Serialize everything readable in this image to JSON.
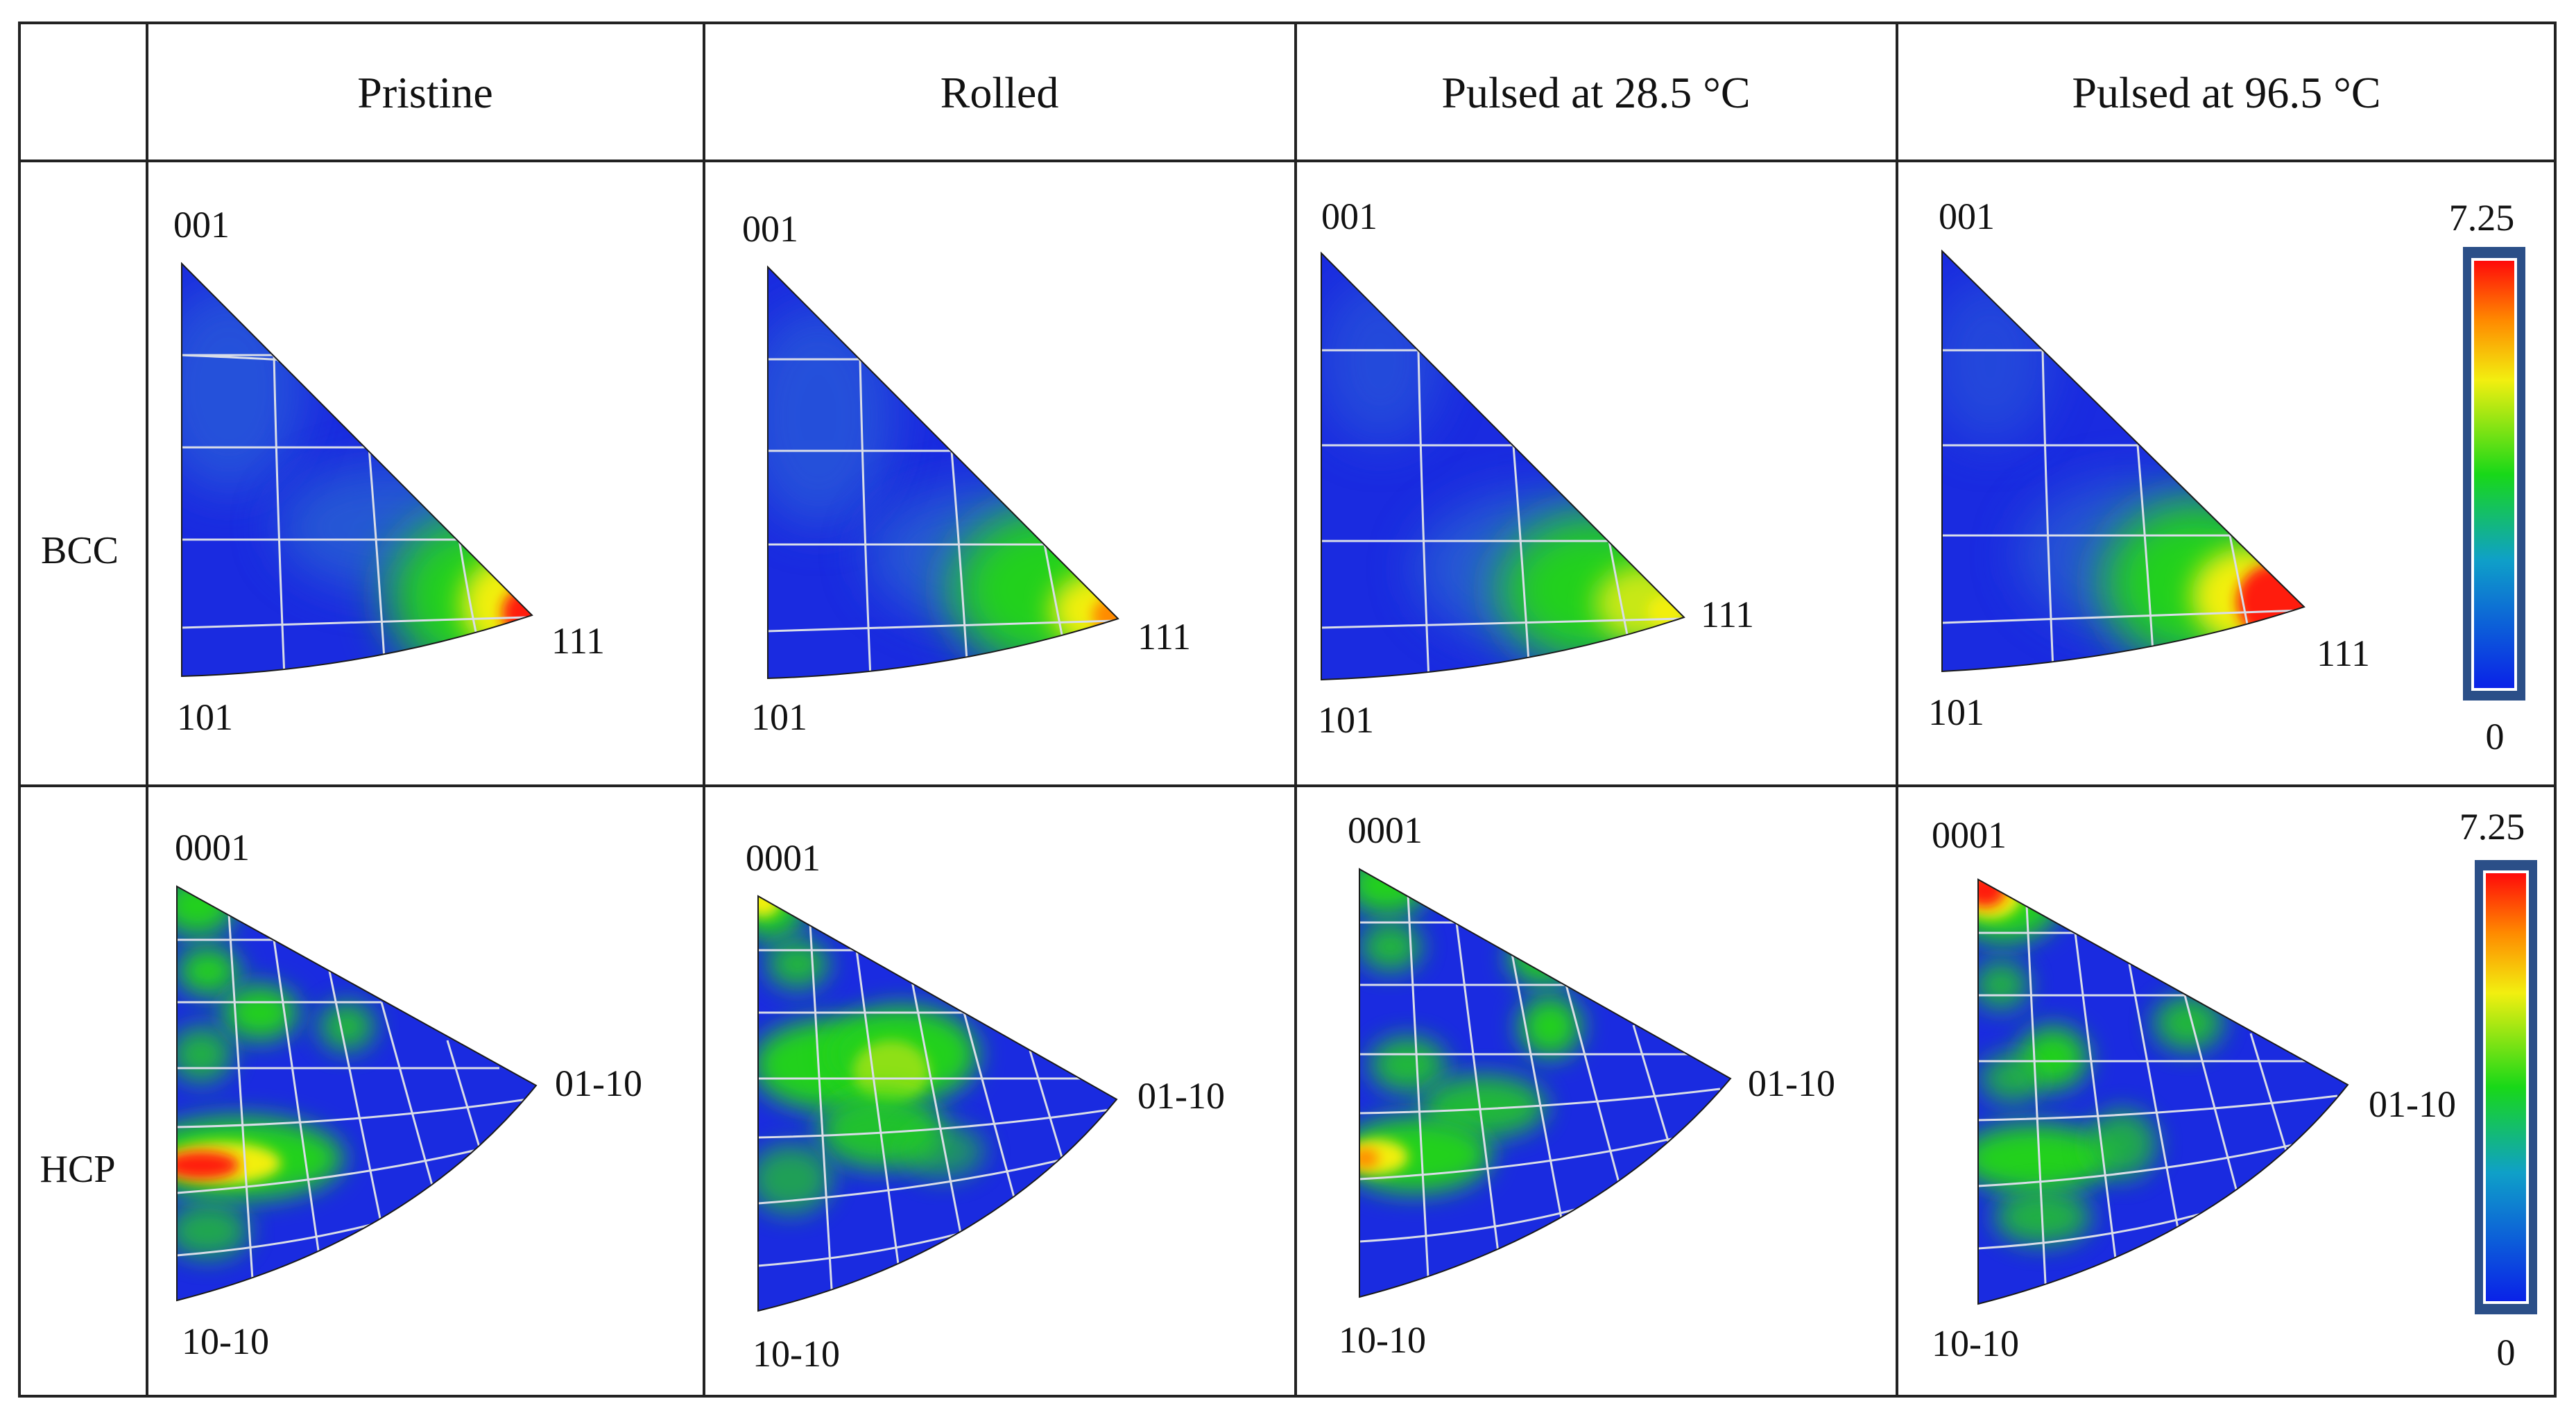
{
  "table": {
    "columns": [
      "Pristine",
      "Rolled",
      "Pulsed at 28.5 °C",
      "Pulsed at 96.5 °C"
    ],
    "rows": [
      {
        "label": "BCC",
        "corners": {
          "top": "001",
          "left": "101",
          "right": "111"
        }
      },
      {
        "label": "HCP",
        "corners": {
          "top": "0001",
          "left": "10-10",
          "right": "01-10"
        }
      }
    ]
  },
  "colorbar": {
    "max": "7.25",
    "min": "0"
  },
  "colors": {
    "low": "#1a2be0",
    "mid": "#22d11e",
    "high": "#ff1a0a",
    "grid": "#d9dde8",
    "border": "#222222",
    "colorbar_frame": "#2b4f88"
  }
}
